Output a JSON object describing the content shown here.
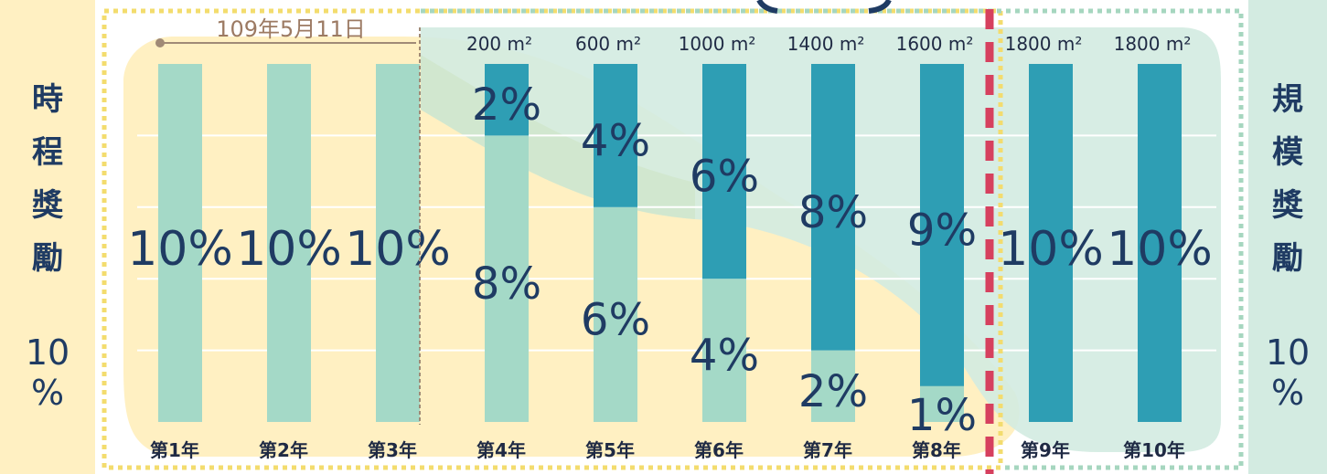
{
  "side_labels": {
    "left": {
      "title": "時程獎勵",
      "value": "10%"
    },
    "right": {
      "title": "規模獎勵",
      "value": "10%"
    }
  },
  "annotation": {
    "date": "109年5月11日"
  },
  "colors": {
    "time_bonus": "#a4d9c7",
    "scale_bonus": "#2e9eb4",
    "yellow_zone": "#fff0c2",
    "green_zone": "#d3ebe1",
    "cutoff_line": "#d6405e",
    "text": "#1f3b63"
  },
  "chart_data": {
    "type": "bar",
    "stacked": true,
    "categories": [
      "第1年",
      "第2年",
      "第3年",
      "第4年",
      "第5年",
      "第6年",
      "第7年",
      "第8年",
      "第9年",
      "第10年"
    ],
    "area_labels": [
      "",
      "",
      "",
      "200 m²",
      "600 m²",
      "1000 m²",
      "1400 m²",
      "1600 m²",
      "1800 m²",
      "1800 m²"
    ],
    "series": [
      {
        "key": "time",
        "values": [
          10,
          10,
          10,
          8,
          6,
          4,
          2,
          1,
          0,
          0
        ]
      },
      {
        "key": "scale",
        "values": [
          0,
          0,
          0,
          2,
          4,
          6,
          8,
          9,
          10,
          10
        ]
      }
    ],
    "ylim": [
      0,
      10
    ],
    "grid": true
  }
}
